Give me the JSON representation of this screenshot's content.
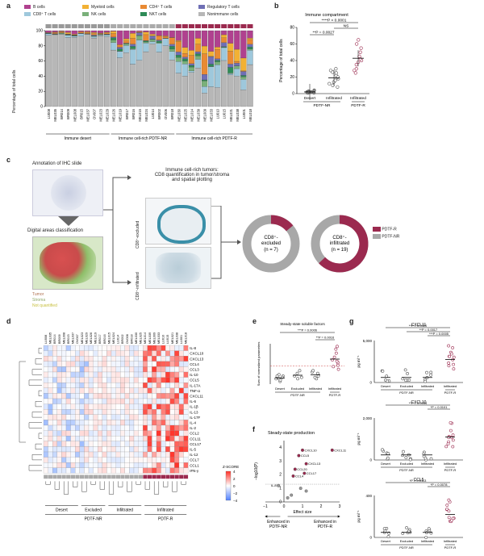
{
  "panels": {
    "a": "a",
    "b": "b",
    "c": "c",
    "d": "d",
    "e": "e",
    "f": "f",
    "g": "g"
  },
  "panel_a": {
    "legend": [
      {
        "label": "B cells",
        "color": "#b0418f"
      },
      {
        "label": "Myeloid cells",
        "color": "#f2b134"
      },
      {
        "label": "CD4⁺ T cells",
        "color": "#e98a33"
      },
      {
        "label": "Regulatory T cells",
        "color": "#6f6fb5"
      },
      {
        "label": "CD8⁺ T cells",
        "color": "#9ec8dc"
      },
      {
        "label": "NK cells",
        "color": "#7ab07a"
      },
      {
        "label": "NKT cells",
        "color": "#2e8b57"
      },
      {
        "label": "Nonimmune cells",
        "color": "#b7b7b7"
      }
    ],
    "ylabel": "Percentage of total cells",
    "yticks": [
      "0",
      "20",
      "40",
      "60",
      "80",
      "100"
    ],
    "groups": [
      "Immune desert",
      "Immune cell-rich PDTF-NR",
      "Immune cell-rich PDTF-R"
    ],
    "samples": [
      "LU008",
      "MEL035",
      "BR014",
      "BR009",
      "MEL008",
      "BR015",
      "MEL037",
      "OV007",
      "MEL023",
      "MEL029",
      "MEL026",
      "MEL019",
      "BR017",
      "BR016",
      "MEL015",
      "MEL024",
      "LU014",
      "BR002",
      "OV006",
      "BR018",
      "MEL030",
      "MEL025",
      "MEL014",
      "MEL039",
      "MEL009",
      "MEL033",
      "LU010",
      "LU015",
      "MEL021",
      "MEL038",
      "LU001",
      "MEL018"
    ]
  },
  "panel_b": {
    "title": "Immune compartment",
    "ylabel": "Percentage of total cells",
    "yticks": [
      "0",
      "20",
      "40",
      "60",
      "80"
    ],
    "sig1": "****P < 0.0001",
    "sig2": "**P = 0.0027",
    "sig3": "NS",
    "categories": [
      "Desert",
      "Infiltrated",
      "Infiltrated"
    ],
    "group1": "PDTF-NR",
    "group2": "PDTF-R",
    "chart_data": {
      "type": "scatter",
      "series": [
        {
          "name": "Desert",
          "values": [
            1,
            2,
            1,
            3,
            2,
            1,
            4,
            2
          ]
        },
        {
          "name": "PDTF-NR Infiltrated",
          "values": [
            10,
            14,
            18,
            22,
            26,
            16,
            30,
            12,
            20,
            25,
            8,
            28
          ]
        },
        {
          "name": "PDTF-R Infiltrated",
          "values": [
            25,
            30,
            40,
            45,
            55,
            60,
            35,
            50,
            28,
            42,
            38,
            65
          ]
        }
      ],
      "ylim": [
        0,
        80
      ]
    }
  },
  "panel_c": {
    "annotation": "Annotation of IHC slide",
    "digital": "Digital areas classification",
    "legend_tumor": "Tumor",
    "legend_stroma": "Stroma",
    "legend_notq": "Not quantified",
    "crtitle1": "Immune cell-rich tumors:",
    "crtitle2": "CD8 quantification in tumor/stroma",
    "crtitle3": "and spatial plotting",
    "excl_label": "CD8⁺-excluded",
    "infl_label": "CD8⁺-infiltrated",
    "donut1_l1": "CD8⁺-",
    "donut1_l2": "excluded",
    "donut1_n": "(n = 7)",
    "donut2_l1": "CD8⁺-",
    "donut2_l2": "infiltrated",
    "donut2_n": "(n = 19)",
    "leg_r": "PDTF-R",
    "leg_nr": "PDTF-NR",
    "donut1_fraction_r": 0.14,
    "donut2_fraction_r": 0.63
  },
  "panel_d": {
    "cytokines": [
      "IL-8",
      "CXCL10",
      "CXCL13",
      "CCL4",
      "CCL3",
      "IL-10",
      "CCL5",
      "IL-17A",
      "TNF-α",
      "CXCL11",
      "IL-6",
      "IL-1β",
      "IL-13",
      "IL-17F",
      "IL-4",
      "IL-2",
      "CCL2",
      "CCL11",
      "CCL17",
      "IL-5",
      "IL-12",
      "CCL7",
      "CCL1",
      "IFN-γ"
    ],
    "scale_title": "Z-SCORE",
    "scale_ticks": [
      "4",
      "2",
      "0",
      "−2",
      "−4"
    ],
    "groups_bottom": [
      "Desert",
      "Excluded",
      "Infiltrated",
      "Infiltrated"
    ],
    "sup_nr": "PDTF-NR",
    "sup_r": "PDTF-R"
  },
  "panel_e": {
    "title": "Steady-state soluble factors",
    "ylabel": "Sum of normalized parameters",
    "sig1": "***P = 0.0006",
    "sig2": "**P = 0.0016",
    "cats": [
      "Desert",
      "Excluded",
      "Infiltrated",
      "Infiltrated"
    ],
    "grp_nr": "PDTF-NR",
    "grp_r": "PDTF-R",
    "chart_data": {
      "type": "scatter",
      "series": [
        {
          "name": "Desert",
          "values": [
            -4,
            -2,
            -6,
            -3,
            -5,
            -1,
            -4,
            -2
          ]
        },
        {
          "name": "Excluded",
          "values": [
            -3,
            0,
            -2,
            2,
            -4
          ]
        },
        {
          "name": "PDTF-NR Infiltrated",
          "values": [
            -2,
            1,
            -4,
            0,
            -3,
            2
          ]
        },
        {
          "name": "PDTF-R Infiltrated",
          "values": [
            5,
            10,
            15,
            8,
            20,
            12,
            6,
            18,
            3,
            9
          ]
        }
      ]
    }
  },
  "panel_f": {
    "title": "Steady-state production",
    "ylabel": "−log10(P)",
    "xlabel": "Effect size",
    "xticks": [
      "−1",
      "0",
      "1",
      "2",
      "3"
    ],
    "yticks": [
      "0",
      "1",
      "2",
      "3",
      "4"
    ],
    "enh_nr": "Enhanced in PDTF-NR",
    "enh_r": "Enhanced in PDTF-R",
    "chart_data": {
      "type": "scatter",
      "points": [
        {
          "label": "CXCL10",
          "x": 1.0,
          "y": 3.8
        },
        {
          "label": "CXCL11",
          "x": 2.6,
          "y": 3.8
        },
        {
          "label": "CCL5",
          "x": 0.8,
          "y": 3.4
        },
        {
          "label": "CXCL13",
          "x": 1.2,
          "y": 2.8
        },
        {
          "label": "CCL20",
          "x": 0.6,
          "y": 2.4
        },
        {
          "label": "CCL17",
          "x": 1.1,
          "y": 2.1
        },
        {
          "label": "CCL4",
          "x": 0.5,
          "y": 1.9
        },
        {
          "label": "IL-8",
          "x": -0.3,
          "y": 1.2
        },
        {
          "label": "",
          "x": 0.9,
          "y": 1.0
        },
        {
          "label": "",
          "x": 1.2,
          "y": 0.8
        },
        {
          "label": "",
          "x": 0.4,
          "y": 0.5
        },
        {
          "label": "",
          "x": 0.2,
          "y": 0.3
        }
      ],
      "xlim": [
        -1,
        3
      ],
      "ylim": [
        0,
        4.5
      ]
    }
  },
  "panel_g": {
    "charts": [
      {
        "title": "CXCL11",
        "ylabel": "pg ml⁻¹",
        "ymax_label": "5,000",
        "sig": [
          "**P = 0.0020",
          "**P = 0.0017",
          "***P = 0.0005"
        ]
      },
      {
        "title": "CXCL10",
        "ylabel": "pg ml⁻¹",
        "ymax_label": "2,000",
        "sig": [
          "**P = 0.0034",
          "*P = 0.0101"
        ]
      },
      {
        "title": "CCL5",
        "ylabel": "pg ml⁻¹",
        "ymax_label": "400",
        "sig": [
          "*P = 0.0113",
          "*P = 0.0078"
        ]
      }
    ],
    "cats": [
      "Desert",
      "Excluded",
      "Infiltrated",
      "Infiltrated"
    ],
    "grp_nr": "PDTF-NR",
    "grp_r": "PDTF-R"
  }
}
